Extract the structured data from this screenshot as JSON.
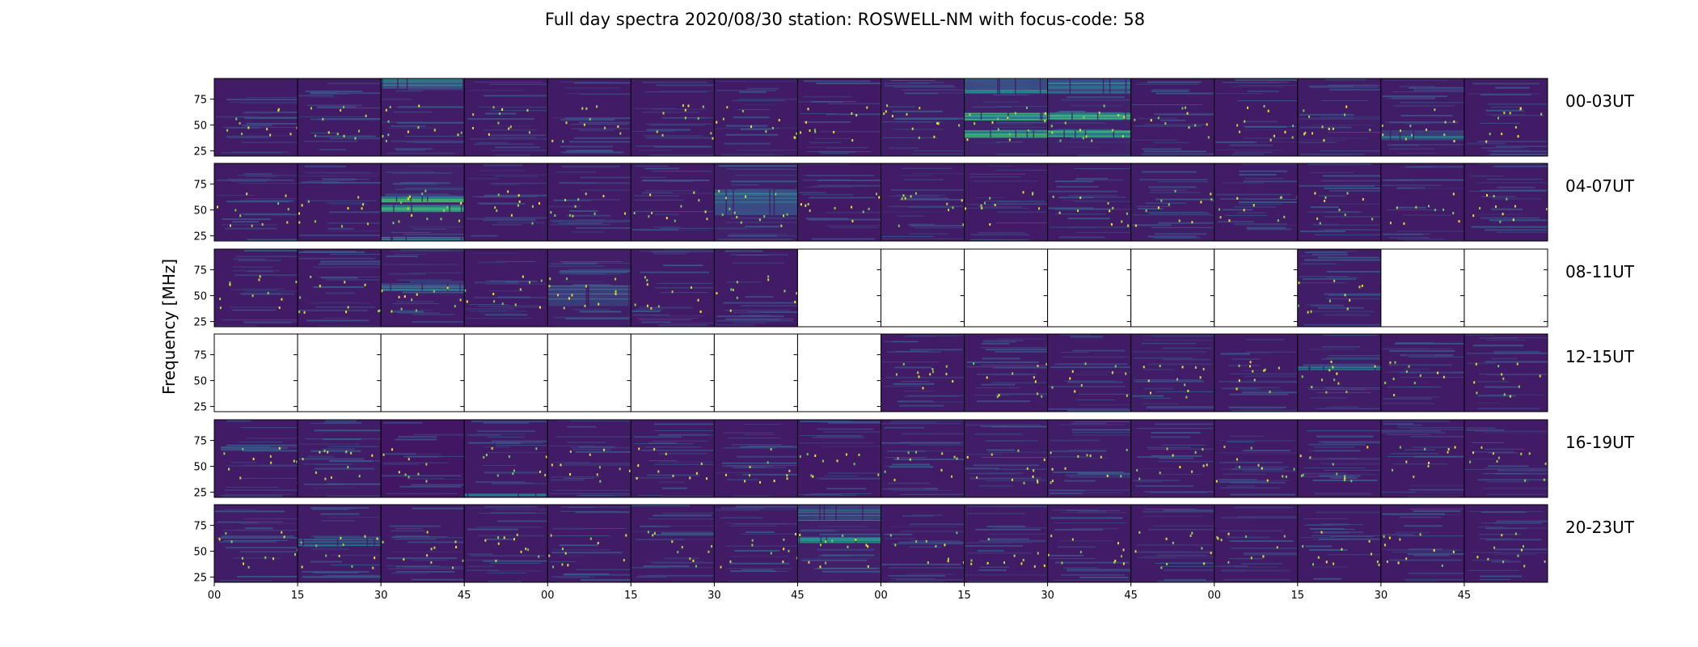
{
  "chart_data": {
    "type": "heatmap",
    "title": "Full day spectra 2020/08/30 station: ROSWELL-NM with focus-code: 58",
    "ylabel": "Frequency [MHz]",
    "xlabel": "",
    "ylim": [
      20,
      95
    ],
    "yticks": [
      "25",
      "50",
      "75"
    ],
    "xticks": [
      "00",
      "15",
      "30",
      "45",
      "00",
      "15",
      "30",
      "45",
      "00",
      "15",
      "30",
      "45",
      "00",
      "15",
      "30",
      "45"
    ],
    "colormap": [
      "#440154",
      "#3b528b",
      "#21918c",
      "#5ec962",
      "#fde725"
    ],
    "grid": false,
    "rows": [
      {
        "label": "00-03UT",
        "panels": [
          {
            "available": true,
            "activity": 0.3,
            "bands": []
          },
          {
            "available": true,
            "activity": 0.3,
            "bands": []
          },
          {
            "available": true,
            "activity": 0.35,
            "bands": [
              {
                "from": 85,
                "to": 95,
                "strength": 0.5
              }
            ]
          },
          {
            "available": true,
            "activity": 0.3,
            "bands": []
          },
          {
            "available": true,
            "activity": 0.3,
            "bands": []
          },
          {
            "available": true,
            "activity": 0.3,
            "bands": []
          },
          {
            "available": true,
            "activity": 0.3,
            "bands": []
          },
          {
            "available": true,
            "activity": 0.25,
            "bands": []
          },
          {
            "available": true,
            "activity": 0.4,
            "bands": []
          },
          {
            "available": true,
            "activity": 0.5,
            "bands": [
              {
                "from": 38,
                "to": 45,
                "strength": 0.8
              },
              {
                "from": 55,
                "to": 62,
                "strength": 0.85
              },
              {
                "from": 80,
                "to": 95,
                "strength": 0.45
              }
            ]
          },
          {
            "available": true,
            "activity": 0.5,
            "bands": [
              {
                "from": 38,
                "to": 45,
                "strength": 0.8
              },
              {
                "from": 55,
                "to": 62,
                "strength": 0.85
              },
              {
                "from": 80,
                "to": 95,
                "strength": 0.45
              }
            ]
          },
          {
            "available": true,
            "activity": 0.3,
            "bands": []
          },
          {
            "available": true,
            "activity": 0.3,
            "bands": []
          },
          {
            "available": true,
            "activity": 0.35,
            "bands": []
          },
          {
            "available": true,
            "activity": 0.35,
            "bands": [
              {
                "from": 35,
                "to": 45,
                "strength": 0.35
              }
            ]
          },
          {
            "available": true,
            "activity": 0.3,
            "bands": []
          }
        ]
      },
      {
        "label": "04-07UT",
        "panels": [
          {
            "available": true,
            "activity": 0.3,
            "bands": []
          },
          {
            "available": true,
            "activity": 0.3,
            "bands": []
          },
          {
            "available": true,
            "activity": 0.5,
            "bands": [
              {
                "from": 48,
                "to": 55,
                "strength": 0.8
              },
              {
                "from": 58,
                "to": 63,
                "strength": 0.85
              },
              {
                "from": 20,
                "to": 24,
                "strength": 0.4
              }
            ]
          },
          {
            "available": true,
            "activity": 0.3,
            "bands": []
          },
          {
            "available": true,
            "activity": 0.3,
            "bands": []
          },
          {
            "available": true,
            "activity": 0.3,
            "bands": []
          },
          {
            "available": true,
            "activity": 0.45,
            "bands": [
              {
                "from": 45,
                "to": 70,
                "strength": 0.45
              }
            ]
          },
          {
            "available": true,
            "activity": 0.25,
            "bands": []
          },
          {
            "available": true,
            "activity": 0.3,
            "bands": []
          },
          {
            "available": true,
            "activity": 0.3,
            "bands": []
          },
          {
            "available": true,
            "activity": 0.3,
            "bands": []
          },
          {
            "available": true,
            "activity": 0.35,
            "bands": []
          },
          {
            "available": true,
            "activity": 0.3,
            "bands": []
          },
          {
            "available": true,
            "activity": 0.3,
            "bands": []
          },
          {
            "available": true,
            "activity": 0.3,
            "bands": []
          },
          {
            "available": true,
            "activity": 0.3,
            "bands": []
          }
        ]
      },
      {
        "label": "08-11UT",
        "panels": [
          {
            "available": true,
            "activity": 0.3,
            "bands": []
          },
          {
            "available": true,
            "activity": 0.3,
            "bands": []
          },
          {
            "available": true,
            "activity": 0.35,
            "bands": [
              {
                "from": 55,
                "to": 62,
                "strength": 0.4
              }
            ]
          },
          {
            "available": true,
            "activity": 0.3,
            "bands": []
          },
          {
            "available": true,
            "activity": 0.4,
            "bands": [
              {
                "from": 40,
                "to": 60,
                "strength": 0.35
              }
            ]
          },
          {
            "available": true,
            "activity": 0.3,
            "bands": []
          },
          {
            "available": true,
            "activity": 0.3,
            "bands": []
          },
          {
            "available": false,
            "activity": 0,
            "bands": []
          },
          {
            "available": false,
            "activity": 0,
            "bands": []
          },
          {
            "available": false,
            "activity": 0,
            "bands": []
          },
          {
            "available": false,
            "activity": 0,
            "bands": []
          },
          {
            "available": false,
            "activity": 0,
            "bands": []
          },
          {
            "available": false,
            "activity": 0,
            "bands": []
          },
          {
            "available": true,
            "activity": 0.35,
            "bands": []
          },
          {
            "available": false,
            "activity": 0,
            "bands": []
          },
          {
            "available": false,
            "activity": 0,
            "bands": []
          }
        ]
      },
      {
        "label": "12-15UT",
        "panels": [
          {
            "available": false,
            "activity": 0,
            "bands": []
          },
          {
            "available": false,
            "activity": 0,
            "bands": []
          },
          {
            "available": false,
            "activity": 0,
            "bands": []
          },
          {
            "available": false,
            "activity": 0,
            "bands": []
          },
          {
            "available": false,
            "activity": 0,
            "bands": []
          },
          {
            "available": false,
            "activity": 0,
            "bands": []
          },
          {
            "available": false,
            "activity": 0,
            "bands": []
          },
          {
            "available": false,
            "activity": 0,
            "bands": []
          },
          {
            "available": true,
            "activity": 0.3,
            "bands": []
          },
          {
            "available": true,
            "activity": 0.3,
            "bands": []
          },
          {
            "available": true,
            "activity": 0.3,
            "bands": []
          },
          {
            "available": true,
            "activity": 0.35,
            "bands": []
          },
          {
            "available": true,
            "activity": 0.3,
            "bands": []
          },
          {
            "available": true,
            "activity": 0.35,
            "bands": [
              {
                "from": 60,
                "to": 64,
                "strength": 0.3
              }
            ]
          },
          {
            "available": true,
            "activity": 0.3,
            "bands": []
          },
          {
            "available": true,
            "activity": 0.3,
            "bands": []
          }
        ]
      },
      {
        "label": "16-19UT",
        "panels": [
          {
            "available": true,
            "activity": 0.3,
            "bands": []
          },
          {
            "available": true,
            "activity": 0.35,
            "bands": []
          },
          {
            "available": true,
            "activity": 0.15,
            "bands": []
          },
          {
            "available": true,
            "activity": 0.3,
            "bands": [
              {
                "from": 20,
                "to": 24,
                "strength": 0.3
              }
            ]
          },
          {
            "available": true,
            "activity": 0.3,
            "bands": []
          },
          {
            "available": true,
            "activity": 0.3,
            "bands": []
          },
          {
            "available": true,
            "activity": 0.3,
            "bands": []
          },
          {
            "available": true,
            "activity": 0.25,
            "bands": []
          },
          {
            "available": true,
            "activity": 0.3,
            "bands": []
          },
          {
            "available": true,
            "activity": 0.35,
            "bands": []
          },
          {
            "available": true,
            "activity": 0.35,
            "bands": []
          },
          {
            "available": true,
            "activity": 0.3,
            "bands": []
          },
          {
            "available": true,
            "activity": 0.3,
            "bands": []
          },
          {
            "available": true,
            "activity": 0.3,
            "bands": []
          },
          {
            "available": true,
            "activity": 0.3,
            "bands": []
          },
          {
            "available": true,
            "activity": 0.3,
            "bands": []
          }
        ]
      },
      {
        "label": "20-23UT",
        "panels": [
          {
            "available": true,
            "activity": 0.35,
            "bands": []
          },
          {
            "available": true,
            "activity": 0.35,
            "bands": [
              {
                "from": 55,
                "to": 62,
                "strength": 0.3
              }
            ]
          },
          {
            "available": true,
            "activity": 0.3,
            "bands": []
          },
          {
            "available": true,
            "activity": 0.3,
            "bands": []
          },
          {
            "available": true,
            "activity": 0.3,
            "bands": []
          },
          {
            "available": true,
            "activity": 0.3,
            "bands": []
          },
          {
            "available": true,
            "activity": 0.3,
            "bands": []
          },
          {
            "available": true,
            "activity": 0.45,
            "bands": [
              {
                "from": 58,
                "to": 64,
                "strength": 0.6
              },
              {
                "from": 80,
                "to": 95,
                "strength": 0.35
              }
            ]
          },
          {
            "available": true,
            "activity": 0.3,
            "bands": []
          },
          {
            "available": true,
            "activity": 0.3,
            "bands": []
          },
          {
            "available": true,
            "activity": 0.3,
            "bands": []
          },
          {
            "available": true,
            "activity": 0.3,
            "bands": []
          },
          {
            "available": true,
            "activity": 0.3,
            "bands": []
          },
          {
            "available": true,
            "activity": 0.3,
            "bands": []
          },
          {
            "available": true,
            "activity": 0.3,
            "bands": []
          },
          {
            "available": true,
            "activity": 0.3,
            "bands": []
          }
        ]
      }
    ]
  }
}
